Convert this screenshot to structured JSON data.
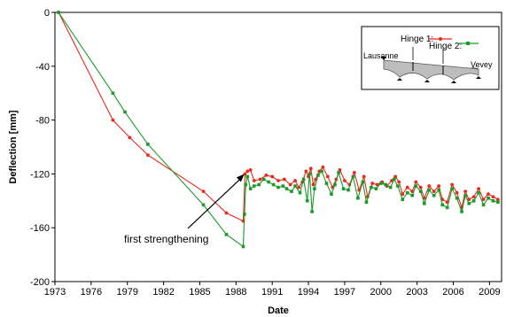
{
  "chart_data": {
    "type": "line",
    "xlabel": "Date",
    "ylabel": "Deflection [mm]",
    "xlim": [
      1973,
      2010
    ],
    "ylim": [
      -200,
      0
    ],
    "xticks": [
      "1973",
      "1976",
      "1979",
      "1982",
      "1985",
      "1988",
      "1991",
      "1994",
      "1997",
      "2000",
      "2003",
      "2006",
      "2009"
    ],
    "yticks": [
      "0",
      "-40",
      "-80",
      "-120",
      "-160",
      "-200"
    ],
    "grid": false,
    "legend_position": "top-right",
    "series": [
      {
        "name": "Hinge 1:",
        "color": "#e8291c",
        "marker": "circle",
        "points": [
          [
            1973.3,
            0
          ],
          [
            1977.8,
            -80
          ],
          [
            1979.2,
            -93
          ],
          [
            1980.7,
            -106
          ],
          [
            1985.3,
            -133
          ],
          [
            1987.2,
            -149
          ],
          [
            1988.6,
            -155
          ],
          [
            1988.75,
            -120
          ],
          [
            1988.95,
            -118
          ],
          [
            1989.2,
            -117
          ],
          [
            1989.5,
            -125
          ],
          [
            1990.0,
            -124
          ],
          [
            1990.5,
            -121
          ],
          [
            1991.0,
            -122
          ],
          [
            1991.5,
            -125
          ],
          [
            1992.0,
            -124
          ],
          [
            1992.5,
            -128
          ],
          [
            1992.9,
            -125
          ],
          [
            1993.2,
            -130
          ],
          [
            1993.5,
            -126
          ],
          [
            1993.8,
            -118
          ],
          [
            1994.0,
            -122
          ],
          [
            1994.2,
            -116
          ],
          [
            1994.4,
            -128
          ],
          [
            1994.6,
            -124
          ],
          [
            1994.9,
            -118
          ],
          [
            1995.2,
            -115
          ],
          [
            1995.6,
            -122
          ],
          [
            1996.0,
            -130
          ],
          [
            1996.3,
            -124
          ],
          [
            1996.6,
            -117
          ],
          [
            1997.0,
            -125
          ],
          [
            1997.4,
            -128
          ],
          [
            1997.8,
            -119
          ],
          [
            1998.2,
            -132
          ],
          [
            1998.6,
            -122
          ],
          [
            1998.9,
            -137
          ],
          [
            1999.3,
            -127
          ],
          [
            1999.7,
            -128
          ],
          [
            2000.1,
            -126
          ],
          [
            2000.5,
            -129
          ],
          [
            2000.9,
            -125
          ],
          [
            2001.2,
            -122
          ],
          [
            2001.5,
            -126
          ],
          [
            2001.8,
            -135
          ],
          [
            2002.2,
            -130
          ],
          [
            2002.6,
            -133
          ],
          [
            2002.9,
            -126
          ],
          [
            2003.3,
            -130
          ],
          [
            2003.6,
            -138
          ],
          [
            2004.0,
            -129
          ],
          [
            2004.4,
            -133
          ],
          [
            2004.8,
            -129
          ],
          [
            2005.1,
            -139
          ],
          [
            2005.5,
            -141
          ],
          [
            2005.9,
            -128
          ],
          [
            2006.3,
            -134
          ],
          [
            2006.7,
            -145
          ],
          [
            2007.0,
            -133
          ],
          [
            2007.3,
            -139
          ],
          [
            2007.7,
            -137
          ],
          [
            2008.1,
            -131
          ],
          [
            2008.5,
            -139
          ],
          [
            2008.9,
            -135
          ],
          [
            2009.3,
            -137
          ],
          [
            2009.7,
            -139
          ]
        ]
      },
      {
        "name": "Hinge 2:",
        "color": "#1a9a2a",
        "marker": "square",
        "points": [
          [
            1973.3,
            0
          ],
          [
            1977.8,
            -60
          ],
          [
            1978.8,
            -74
          ],
          [
            1980.7,
            -98
          ],
          [
            1985.3,
            -143
          ],
          [
            1987.2,
            -165
          ],
          [
            1988.6,
            -174
          ],
          [
            1988.7,
            -150
          ],
          [
            1988.8,
            -128
          ],
          [
            1988.95,
            -122
          ],
          [
            1989.2,
            -131
          ],
          [
            1989.5,
            -129
          ],
          [
            1989.9,
            -128
          ],
          [
            1990.3,
            -124
          ],
          [
            1990.7,
            -126
          ],
          [
            1991.1,
            -128
          ],
          [
            1991.5,
            -130
          ],
          [
            1991.9,
            -129
          ],
          [
            1992.2,
            -131
          ],
          [
            1992.6,
            -133
          ],
          [
            1992.9,
            -129
          ],
          [
            1993.3,
            -134
          ],
          [
            1993.6,
            -124
          ],
          [
            1993.9,
            -140
          ],
          [
            1994.1,
            -120
          ],
          [
            1994.3,
            -148
          ],
          [
            1994.5,
            -131
          ],
          [
            1994.8,
            -121
          ],
          [
            1995.1,
            -118
          ],
          [
            1995.5,
            -127
          ],
          [
            1995.9,
            -135
          ],
          [
            1996.2,
            -128
          ],
          [
            1996.5,
            -119
          ],
          [
            1996.9,
            -131
          ],
          [
            1997.3,
            -132
          ],
          [
            1997.7,
            -122
          ],
          [
            1998.1,
            -138
          ],
          [
            1998.5,
            -126
          ],
          [
            1998.8,
            -141
          ],
          [
            1999.2,
            -130
          ],
          [
            1999.6,
            -131
          ],
          [
            2000.0,
            -127
          ],
          [
            2000.4,
            -128
          ],
          [
            2000.8,
            -130
          ],
          [
            2001.1,
            -124
          ],
          [
            2001.4,
            -129
          ],
          [
            2001.8,
            -139
          ],
          [
            2002.2,
            -134
          ],
          [
            2002.6,
            -136
          ],
          [
            2002.9,
            -129
          ],
          [
            2003.3,
            -133
          ],
          [
            2003.6,
            -142
          ],
          [
            2004.0,
            -132
          ],
          [
            2004.4,
            -136
          ],
          [
            2004.8,
            -132
          ],
          [
            2005.1,
            -143
          ],
          [
            2005.5,
            -145
          ],
          [
            2005.9,
            -131
          ],
          [
            2006.3,
            -138
          ],
          [
            2006.7,
            -148
          ],
          [
            2007.0,
            -136
          ],
          [
            2007.3,
            -142
          ],
          [
            2007.7,
            -140
          ],
          [
            2008.1,
            -134
          ],
          [
            2008.5,
            -143
          ],
          [
            2008.9,
            -138
          ],
          [
            2009.3,
            -140
          ],
          [
            2009.7,
            -141
          ]
        ]
      }
    ],
    "annotations": [
      {
        "text": "first strengthening",
        "target": [
          1988.7,
          -120
        ]
      }
    ],
    "inset": {
      "labels": [
        "Lausanne",
        "Vevey"
      ]
    }
  }
}
